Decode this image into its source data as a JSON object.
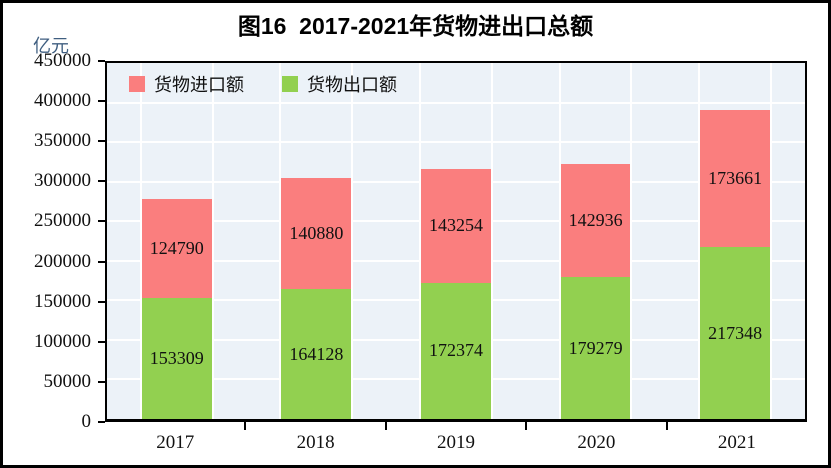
{
  "chart_data": {
    "type": "bar",
    "stacked": true,
    "title": "图16  2017-2021年货物进出口总额",
    "unit_label": "亿元",
    "categories": [
      "2017",
      "2018",
      "2019",
      "2020",
      "2021"
    ],
    "series": [
      {
        "name": "货物进口额",
        "color": "#FA7E7E",
        "stack_position": "top",
        "values": [
          124790,
          140880,
          143254,
          142936,
          173661
        ]
      },
      {
        "name": "货物出口额",
        "color": "#92D050",
        "stack_position": "bottom",
        "values": [
          153309,
          164128,
          172374,
          179279,
          217348
        ]
      }
    ],
    "ylim": [
      0,
      450000
    ],
    "ytick_step": 50000,
    "ytick_labels": [
      "0",
      "50000",
      "100000",
      "150000",
      "200000",
      "250000",
      "300000",
      "350000",
      "400000",
      "450000"
    ],
    "grid": true,
    "grid_color": "#FFFFFF",
    "plot_bg": "#ECF2F8",
    "axis_color": "#000000",
    "legend_position": "top-left-inside",
    "data_labels": true
  },
  "colors": {
    "import_bar": "#FA7E7E",
    "export_bar": "#92D050",
    "plot_background": "#ECF2F8",
    "gridline": "#FFFFFF",
    "axis": "#000000",
    "unit_label_text": "#3F5E80"
  }
}
